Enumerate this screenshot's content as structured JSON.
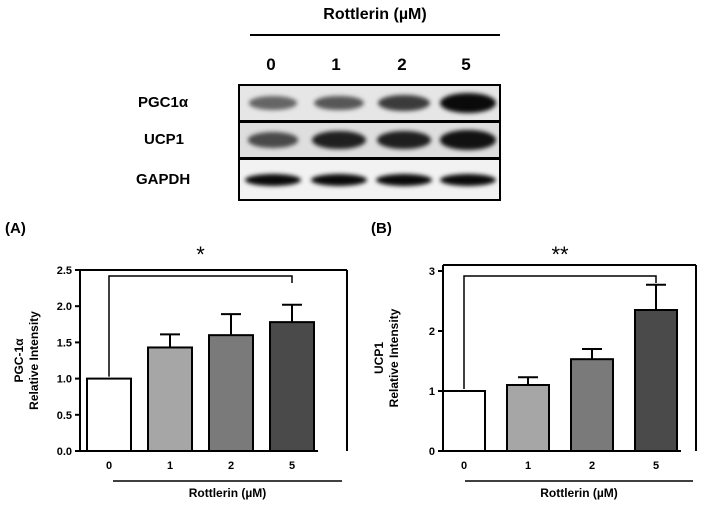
{
  "blot": {
    "header": "Rottlerin (µM)",
    "lanes": [
      "0",
      "1",
      "2",
      "5"
    ],
    "rows": [
      {
        "label": "PGC1α",
        "band_intensity": [
          0.35,
          0.45,
          0.65,
          1.0
        ]
      },
      {
        "label": "UCP1",
        "band_intensity": [
          0.55,
          0.85,
          0.85,
          0.95
        ]
      },
      {
        "label": "GAPDH",
        "band_intensity": [
          1.0,
          1.0,
          1.0,
          1.0
        ]
      }
    ]
  },
  "colors": {
    "bar_outline": "#000000",
    "control_fill": "#ffffff",
    "treated_fill_1": "#a6a6a6",
    "treated_fill_2": "#7a7a7a",
    "treated_fill_3": "#4a4a4a"
  },
  "chart_data": [
    {
      "panel_label": "(A)",
      "type": "bar",
      "categories": [
        "0",
        "1",
        "2",
        "5"
      ],
      "values": [
        1.0,
        1.43,
        1.6,
        1.78
      ],
      "errors": [
        0,
        0.18,
        0.29,
        0.24
      ],
      "ylabel_line1": "PGC-1α",
      "ylabel_line2": "Relative Intensity",
      "xlabel": "Rottlerin (µM)",
      "ylim": [
        0,
        2.5
      ],
      "yticks": [
        "0.0",
        "0.5",
        "1.0",
        "1.5",
        "2.0",
        "2.5"
      ],
      "significance": {
        "from": "0",
        "to": "5",
        "label": "*"
      }
    },
    {
      "panel_label": "(B)",
      "type": "bar",
      "categories": [
        "0",
        "1",
        "2",
        "5"
      ],
      "values": [
        1.0,
        1.1,
        1.53,
        2.35
      ],
      "errors": [
        0,
        0.13,
        0.17,
        0.42
      ],
      "ylabel_line1": "UCP1",
      "ylabel_line2": "Relative Intensity",
      "xlabel": "Rottlerin (µM)",
      "ylim": [
        0,
        3.1
      ],
      "yticks": [
        "0",
        "1",
        "2",
        "3"
      ],
      "significance": {
        "from": "0",
        "to": "5",
        "label": "**"
      }
    }
  ]
}
